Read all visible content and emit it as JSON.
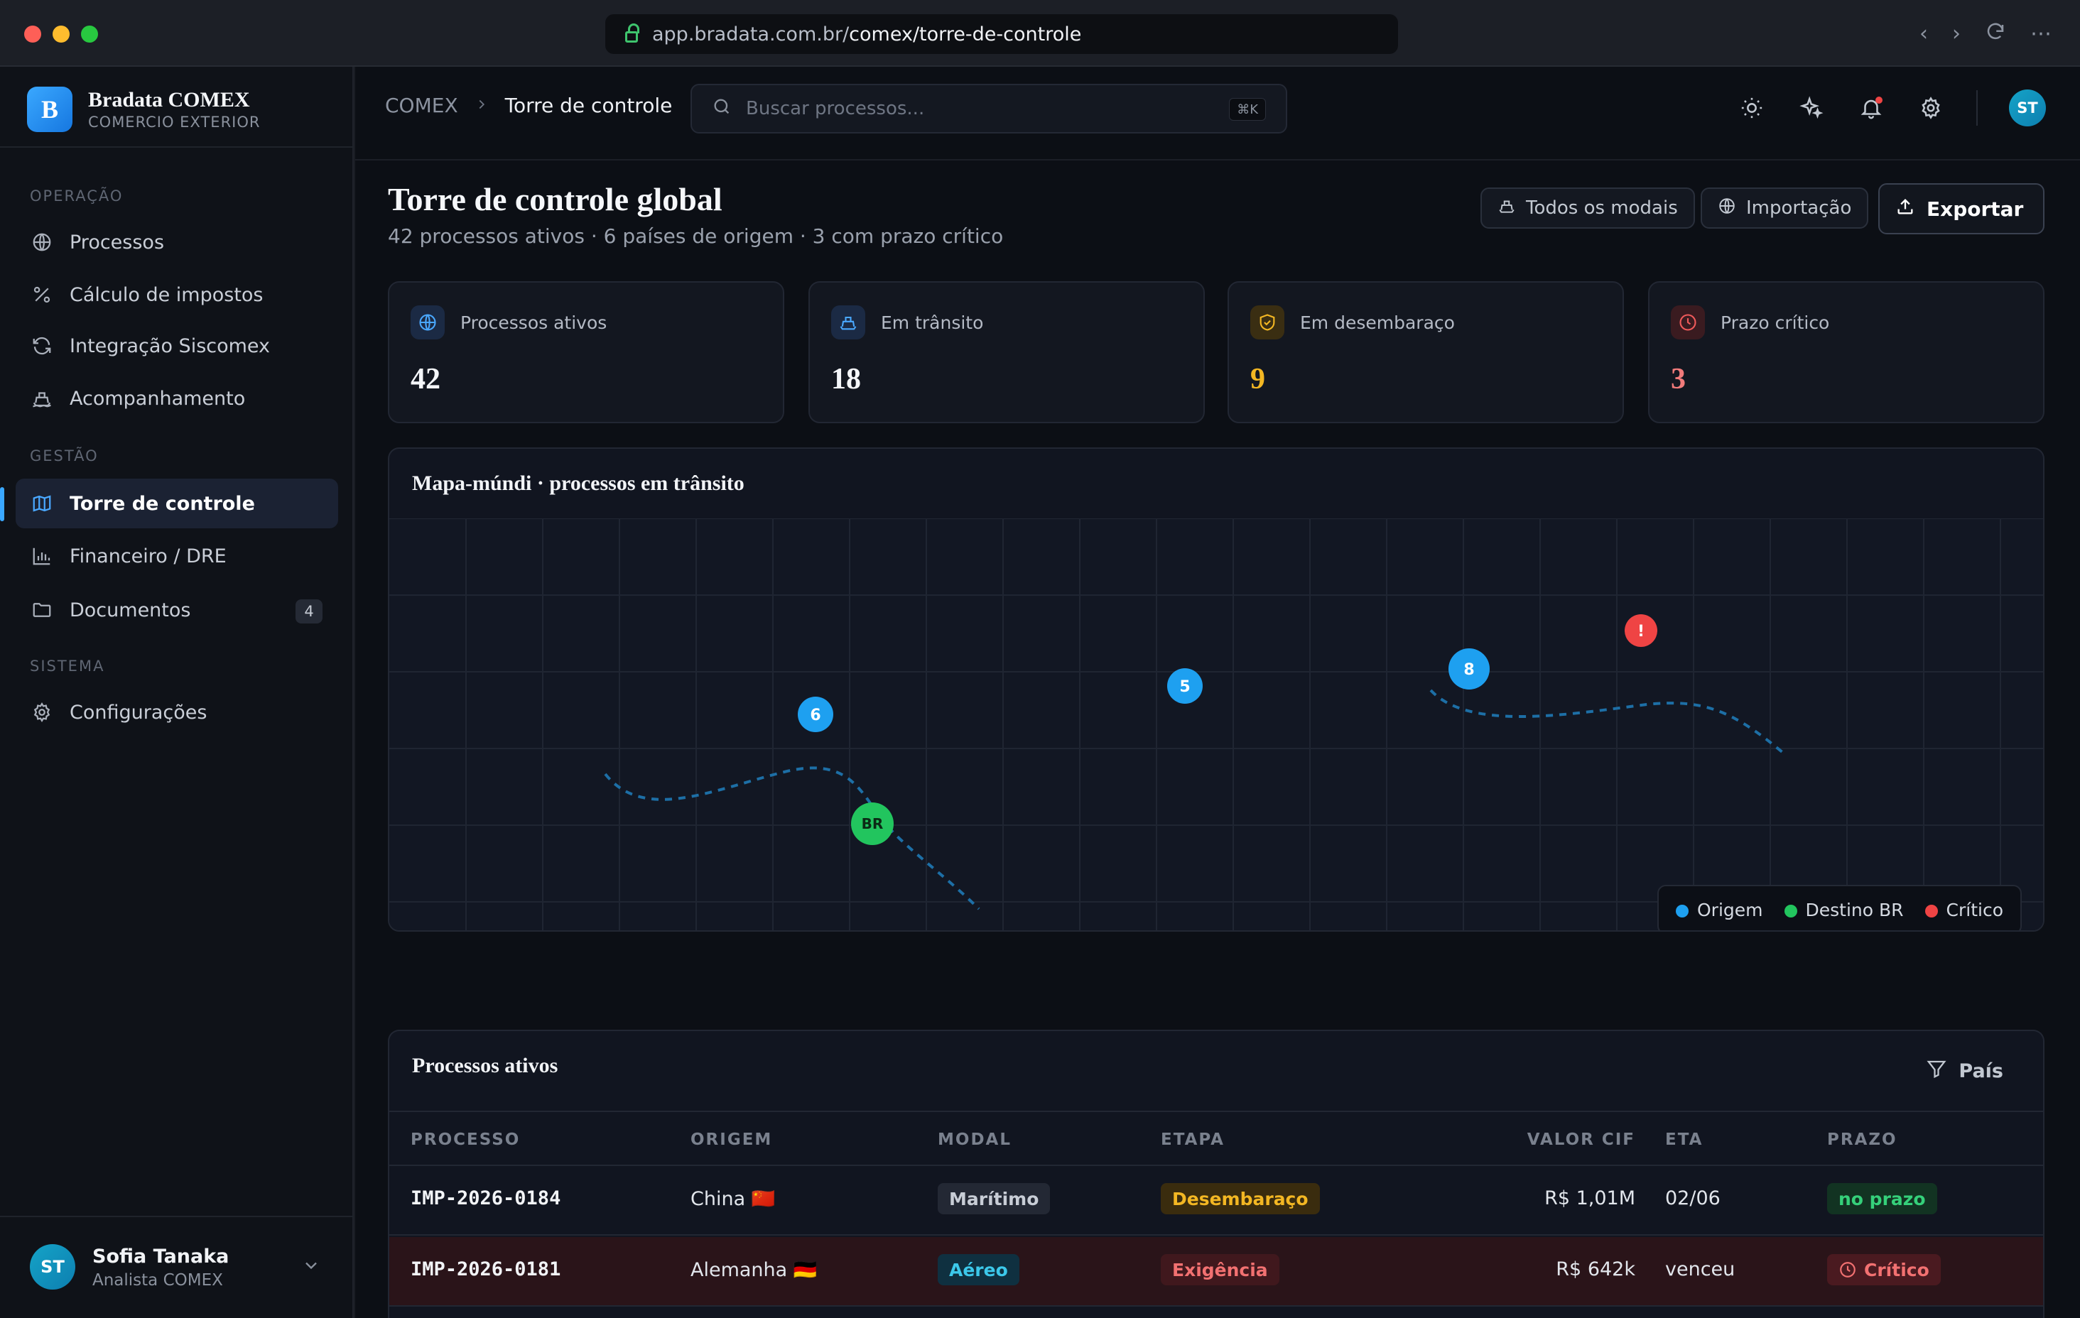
{
  "browser": {
    "url_prefix": "app.bradata.com.br/",
    "url_path": "comex/torre-de-controle"
  },
  "brand": {
    "logo_letter": "B",
    "name": "Bradata COMEX",
    "subtitle": "COMERCIO EXTERIOR"
  },
  "sidebar": {
    "sections": [
      {
        "label": "OPERAÇÃO",
        "items": [
          {
            "label": "Processos",
            "icon": "globe-icon"
          },
          {
            "label": "Cálculo de impostos",
            "icon": "percent-icon"
          },
          {
            "label": "Integração Siscomex",
            "icon": "refresh-icon"
          },
          {
            "label": "Acompanhamento",
            "icon": "ship-icon"
          }
        ]
      },
      {
        "label": "GESTÃO",
        "items": [
          {
            "label": "Torre de controle",
            "icon": "map-icon",
            "active": true
          },
          {
            "label": "Financeiro / DRE",
            "icon": "bar-chart-icon"
          },
          {
            "label": "Documentos",
            "icon": "folder-icon",
            "badge": "4"
          }
        ]
      },
      {
        "label": "SISTEMA",
        "items": [
          {
            "label": "Configurações",
            "icon": "gear-icon"
          }
        ]
      }
    ]
  },
  "user": {
    "initials": "ST",
    "name": "Sofia Tanaka",
    "role": "Analista COMEX"
  },
  "topbar": {
    "breadcrumb_root": "COMEX",
    "breadcrumb_current": "Torre de controle",
    "search_placeholder": "Buscar processos...",
    "search_shortcut": "⌘K",
    "avatar_initials": "ST"
  },
  "page": {
    "title": "Torre de controle global",
    "subtitle": "42 processos ativos · 6 países de origem · 3 com prazo crítico",
    "filter_modal": "Todos os modais",
    "filter_type": "Importação",
    "export_label": "Exportar"
  },
  "kpis": [
    {
      "label": "Processos ativos",
      "value": "42",
      "color": "#f4f6f9",
      "icon": "globe-icon",
      "icon_color": "#4aa8ff"
    },
    {
      "label": "Em trânsito",
      "value": "18",
      "color": "#f4f6f9",
      "icon": "ship-icon",
      "icon_color": "#4aa8ff"
    },
    {
      "label": "Em desembaraço",
      "value": "9",
      "color": "#f3b723",
      "icon": "shield-icon",
      "icon_color": "#f3b723"
    },
    {
      "label": "Prazo crítico",
      "value": "3",
      "color": "#f27b7b",
      "icon": "clock-icon",
      "icon_color": "#f05a5a"
    }
  ],
  "map": {
    "title": "Mapa-múndi · processos em trânsito",
    "markers": [
      {
        "label": "6",
        "type": "origin"
      },
      {
        "label": "5",
        "type": "origin"
      },
      {
        "label": "8",
        "type": "origin"
      },
      {
        "label": "!",
        "type": "critical"
      },
      {
        "label": "BR",
        "type": "destination"
      }
    ],
    "legend": [
      {
        "label": "Origem",
        "color": "#1ea0f0"
      },
      {
        "label": "Destino BR",
        "color": "#22c55e"
      },
      {
        "label": "Crítico",
        "color": "#ef4444"
      }
    ]
  },
  "table": {
    "title": "Processos ativos",
    "filter_label": "País",
    "columns": [
      "PROCESSO",
      "ORIGEM",
      "MODAL",
      "ETAPA",
      "VALOR CIF",
      "ETA",
      "PRAZO"
    ],
    "rows": [
      {
        "processo": "IMP-2026-0184",
        "origem": "China 🇨🇳",
        "modal": "Marítimo",
        "etapa": "Desembaraço",
        "valor": "R$ 1,01M",
        "eta": "02/06",
        "prazo": "no prazo",
        "critical": false
      },
      {
        "processo": "IMP-2026-0181",
        "origem": "Alemanha 🇩🇪",
        "modal": "Aéreo",
        "etapa": "Exigência",
        "valor": "R$ 642k",
        "eta": "venceu",
        "prazo": "Crítico",
        "critical": true
      }
    ]
  }
}
